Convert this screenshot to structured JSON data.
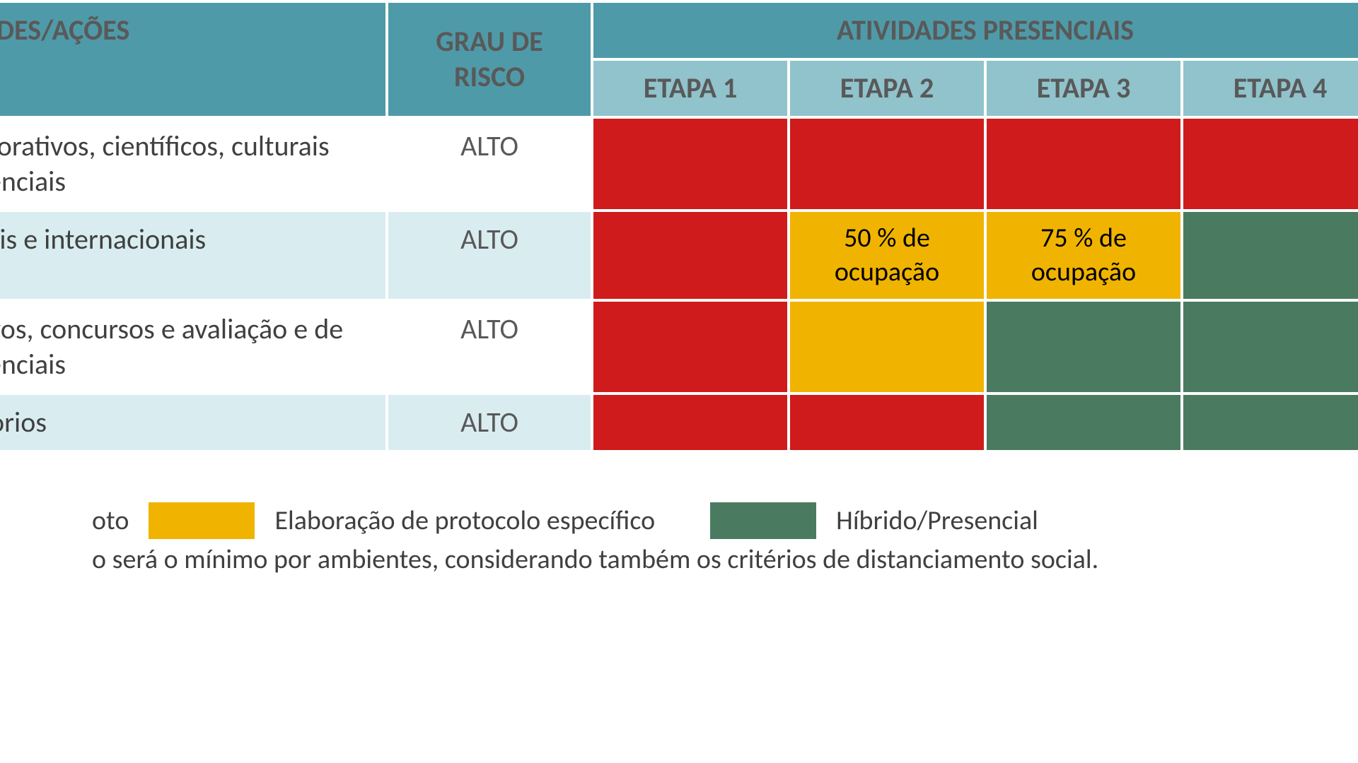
{
  "colors": {
    "header_dark": "#4f9aa8",
    "header_light": "#90c3cc",
    "row_alt": "#d9edf0",
    "red": "#cf1b1b",
    "yellow": "#f0b400",
    "green": "#4a7b60",
    "grid": "#ffffff",
    "text_header": "#595959",
    "text_body": "#404040"
  },
  "header": {
    "activities": "VIDADES/AÇÕES",
    "risk": "GRAU DE RISCO",
    "group": "ATIVIDADES PRESENCIAIS",
    "etapa1": "ETAPA 1",
    "etapa2": "ETAPA 2",
    "etapa3": "ETAPA 3",
    "etapa4": "ETAPA 4"
  },
  "rows": [
    {
      "name": "memorativos, científicos, culturais presenciais",
      "risk": "ALTO",
      "alt": false,
      "cells": [
        {
          "color": "red",
          "text": ""
        },
        {
          "color": "red",
          "text": ""
        },
        {
          "color": "red",
          "text": ""
        },
        {
          "color": "red",
          "text": ""
        }
      ]
    },
    {
      "name": "cionais e internacionais",
      "risk": "ALTO",
      "alt": true,
      "cells": [
        {
          "color": "red",
          "text": ""
        },
        {
          "color": "yellow",
          "text": "50 % de ocupação"
        },
        {
          "color": "yellow",
          "text": "75 % de ocupação"
        },
        {
          "color": "green",
          "text": ""
        }
      ]
    },
    {
      "name": "eletivos, concursos e avaliação e de presenciais",
      "risk": "ALTO",
      "alt": false,
      "cells": [
        {
          "color": "red",
          "text": ""
        },
        {
          "color": "yellow",
          "text": ""
        },
        {
          "color": "green",
          "text": ""
        },
        {
          "color": "green",
          "text": ""
        }
      ]
    },
    {
      "name": "rigatórios",
      "risk": "ALTO",
      "alt": true,
      "cells": [
        {
          "color": "red",
          "text": ""
        },
        {
          "color": "red",
          "text": ""
        },
        {
          "color": "green",
          "text": ""
        },
        {
          "color": "green",
          "text": ""
        }
      ]
    }
  ],
  "legend": {
    "item1_color": "yellow",
    "item1_pre": "oto",
    "item1_label": "Elaboração de protocolo específico",
    "item2_color": "green",
    "item2_label": "Híbrido/Presencial"
  },
  "footnote": "o será o mínimo por ambientes, considerando também os critérios de distanciamento social."
}
